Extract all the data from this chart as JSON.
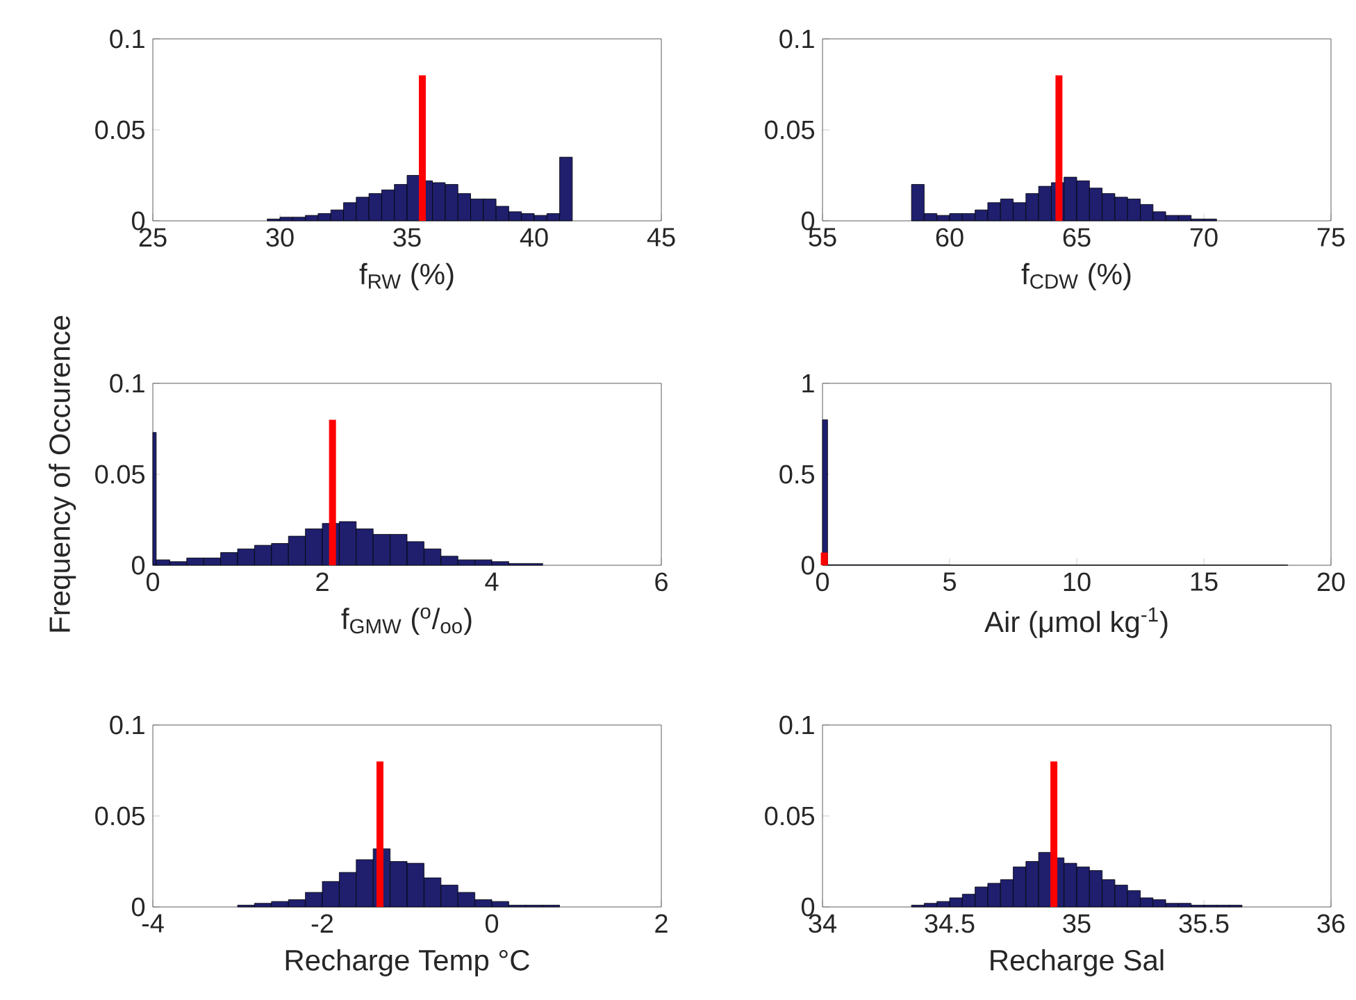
{
  "chart_data": [
    {
      "type": "histogram",
      "xlabel": "f$_{RW}$ (%)",
      "xlim": [
        25,
        45
      ],
      "xticks": [
        25,
        30,
        35,
        40,
        45
      ],
      "ylim": [
        0,
        0.1
      ],
      "yticks": [
        0,
        0.05,
        0.1
      ],
      "series": [
        {
          "color": "#1f1f6e",
          "bins": [
            29.5,
            30,
            30.5,
            31,
            31.5,
            32,
            32.5,
            33,
            33.5,
            34,
            34.5,
            35,
            35.5,
            36,
            36.5,
            37,
            37.5,
            38,
            38.5,
            39,
            39.5,
            40,
            40.5,
            41,
            41.5
          ],
          "values": [
            0.001,
            0.002,
            0.002,
            0.003,
            0.004,
            0.006,
            0.01,
            0.013,
            0.015,
            0.017,
            0.02,
            0.025,
            0.022,
            0.021,
            0.02,
            0.015,
            0.012,
            0.012,
            0.008,
            0.005,
            0.004,
            0.003,
            0.004,
            0.035
          ]
        },
        {
          "type": "bar",
          "color": "#ff0000",
          "x": [
            35.6
          ],
          "values": [
            0.08
          ]
        }
      ]
    },
    {
      "type": "histogram",
      "xlabel": "f$_{CDW}$ (%)",
      "xlim": [
        55,
        75
      ],
      "xticks": [
        55,
        60,
        65,
        70,
        75
      ],
      "ylim": [
        0,
        0.1
      ],
      "yticks": [
        0,
        0.05,
        0.1
      ],
      "series": [
        {
          "color": "#1f1f6e",
          "bins": [
            58.5,
            59,
            59.5,
            60,
            60.5,
            61,
            61.5,
            62,
            62.5,
            63,
            63.5,
            64,
            64.5,
            65,
            65.5,
            66,
            66.5,
            67,
            67.5,
            68,
            68.5,
            69,
            69.5,
            70,
            70.5
          ],
          "values": [
            0.02,
            0.004,
            0.003,
            0.004,
            0.004,
            0.006,
            0.01,
            0.012,
            0.01,
            0.015,
            0.019,
            0.021,
            0.024,
            0.022,
            0.018,
            0.015,
            0.013,
            0.012,
            0.009,
            0.005,
            0.003,
            0.003,
            0.001,
            0.001
          ]
        },
        {
          "type": "bar",
          "color": "#ff0000",
          "x": [
            64.3
          ],
          "values": [
            0.08
          ]
        }
      ]
    },
    {
      "type": "histogram",
      "xlabel": "f$_{GMW}$ ($^{o}$/$_{oo}$)",
      "ylabel": "Frequency of Occurence",
      "xlim": [
        0,
        6
      ],
      "xticks": [
        0,
        2,
        4,
        6
      ],
      "ylim": [
        0,
        0.1
      ],
      "yticks": [
        0,
        0.05,
        0.1
      ],
      "series": [
        {
          "color": "#1f1f6e",
          "bins": [
            0,
            0.04,
            0.2,
            0.4,
            0.6,
            0.8,
            1.0,
            1.2,
            1.4,
            1.6,
            1.8,
            2.0,
            2.2,
            2.4,
            2.6,
            2.8,
            3.0,
            3.2,
            3.4,
            3.6,
            3.8,
            4.0,
            4.2,
            4.6
          ],
          "values": [
            0.073,
            0.003,
            0.002,
            0.004,
            0.004,
            0.007,
            0.009,
            0.011,
            0.012,
            0.016,
            0.02,
            0.023,
            0.024,
            0.02,
            0.017,
            0.017,
            0.013,
            0.009,
            0.005,
            0.003,
            0.003,
            0.002,
            0.001
          ]
        },
        {
          "type": "bar",
          "color": "#ff0000",
          "x": [
            2.12
          ],
          "values": [
            0.08
          ]
        }
      ]
    },
    {
      "type": "histogram",
      "xlabel": "Air (μmol kg$^{-1}$)",
      "xlim": [
        0,
        20
      ],
      "xticks": [
        0,
        5,
        10,
        15,
        20
      ],
      "ylim": [
        0,
        1
      ],
      "yticks": [
        0,
        0.5,
        1
      ],
      "series": [
        {
          "color": "#1f1f6e",
          "bins": [
            0,
            0.2,
            5,
            10,
            15,
            18.3
          ],
          "values": [
            0.8,
            0.003,
            0.002,
            0.002,
            0.002
          ]
        },
        {
          "type": "bar",
          "color": "#ff0000",
          "x": [
            0.07
          ],
          "values": [
            0.07
          ]
        }
      ]
    },
    {
      "type": "histogram",
      "xlabel": "Recharge Temp °C",
      "xlim": [
        -4,
        2
      ],
      "xticks": [
        -4,
        -2,
        0,
        2
      ],
      "ylim": [
        0,
        0.1
      ],
      "yticks": [
        0,
        0.05,
        0.1
      ],
      "series": [
        {
          "color": "#1f1f6e",
          "bins": [
            -3.0,
            -2.8,
            -2.6,
            -2.4,
            -2.2,
            -2.0,
            -1.8,
            -1.6,
            -1.4,
            -1.2,
            -1.0,
            -0.8,
            -0.6,
            -0.4,
            -0.2,
            0,
            0.2,
            0.4,
            0.6,
            0.8
          ],
          "values": [
            0.001,
            0.002,
            0.003,
            0.004,
            0.008,
            0.014,
            0.019,
            0.026,
            0.032,
            0.025,
            0.024,
            0.016,
            0.012,
            0.008,
            0.004,
            0.003,
            0.001,
            0.001,
            0.001
          ]
        },
        {
          "type": "bar",
          "color": "#ff0000",
          "x": [
            -1.32
          ],
          "values": [
            0.08
          ]
        }
      ]
    },
    {
      "type": "histogram",
      "xlabel": "Recharge Sal",
      "xlim": [
        34,
        36
      ],
      "xticks": [
        34,
        34.5,
        35,
        35.5,
        36
      ],
      "ylim": [
        0,
        0.1
      ],
      "yticks": [
        0,
        0.05,
        0.1
      ],
      "series": [
        {
          "color": "#1f1f6e",
          "bins": [
            34.35,
            34.4,
            34.45,
            34.5,
            34.55,
            34.6,
            34.65,
            34.7,
            34.75,
            34.8,
            34.85,
            34.9,
            34.95,
            35.0,
            35.05,
            35.1,
            35.15,
            35.2,
            35.25,
            35.3,
            35.35,
            35.4,
            35.45,
            35.5,
            35.55,
            35.6,
            35.65
          ],
          "values": [
            0.001,
            0.002,
            0.003,
            0.005,
            0.007,
            0.011,
            0.013,
            0.015,
            0.022,
            0.025,
            0.03,
            0.027,
            0.024,
            0.022,
            0.02,
            0.015,
            0.012,
            0.009,
            0.005,
            0.004,
            0.002,
            0.002,
            0.001,
            0.001,
            0.001,
            0.001
          ]
        },
        {
          "type": "bar",
          "color": "#ff0000",
          "x": [
            34.91
          ],
          "values": [
            0.08
          ]
        }
      ]
    }
  ]
}
